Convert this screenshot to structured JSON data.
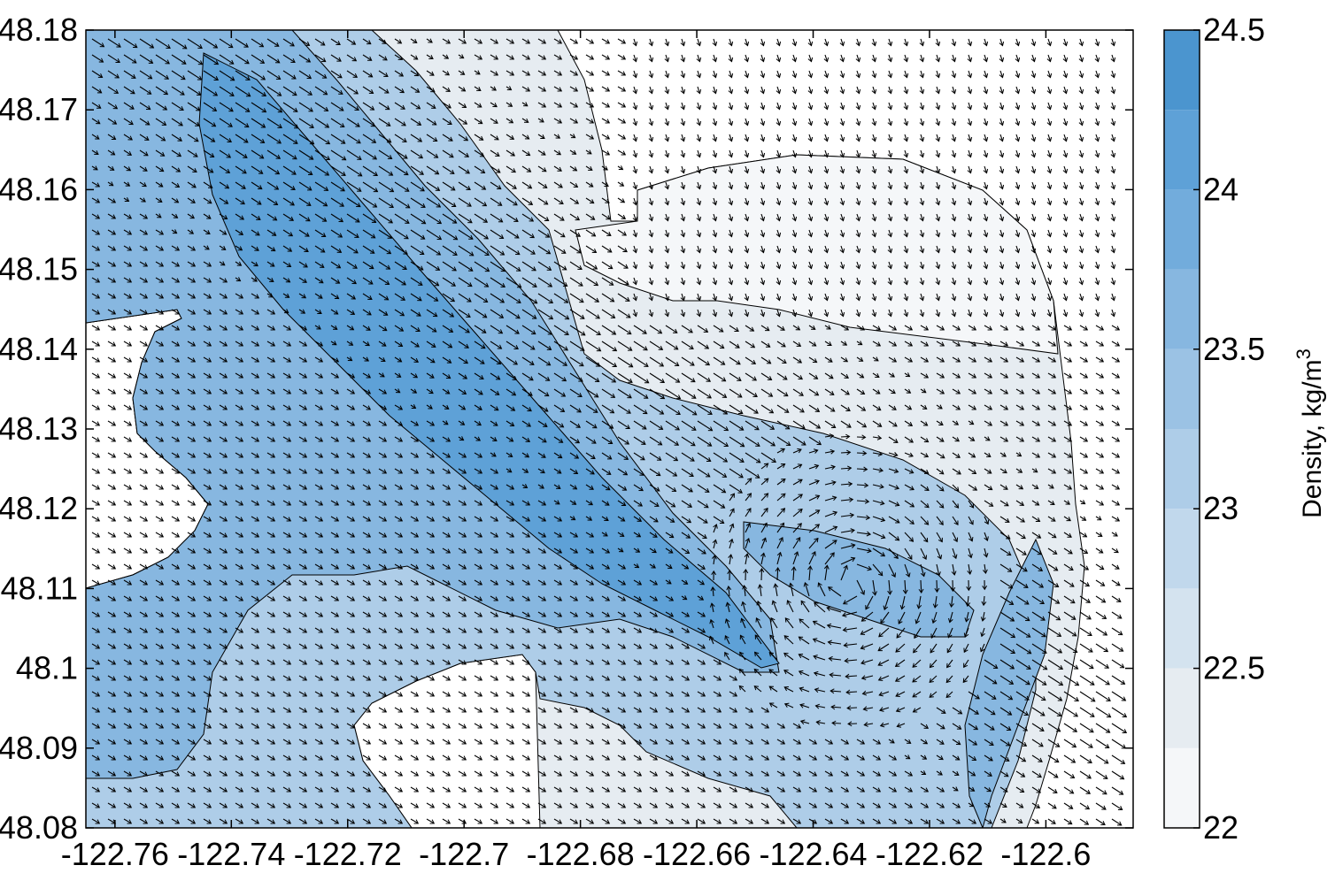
{
  "chart_data": {
    "type": "heatmap",
    "title": "",
    "xlabel": "",
    "ylabel": "",
    "x_range": [
      -122.765,
      -122.585
    ],
    "y_range": [
      48.08,
      48.18
    ],
    "x_ticks": [
      -122.76,
      -122.74,
      -122.72,
      -122.7,
      -122.68,
      -122.66,
      -122.64,
      -122.62,
      -122.6
    ],
    "x_tick_labels": [
      "-122.76",
      "-122.74",
      "-122.72",
      "-122.7",
      "-122.68",
      "-122.66",
      "-122.64",
      "-122.62",
      "-122.6"
    ],
    "y_ticks": [
      48.08,
      48.09,
      48.1,
      48.11,
      48.12,
      48.13,
      48.14,
      48.15,
      48.16,
      48.17,
      48.18
    ],
    "y_tick_labels": [
      "48.08",
      "48.09",
      "48.1",
      "48.11",
      "48.12",
      "48.13",
      "48.14",
      "48.15",
      "48.16",
      "48.17",
      "48.18"
    ],
    "colorbar": {
      "label": "Density, kg/m",
      "label_superscript": "3",
      "range": [
        22,
        24.5
      ],
      "levels": [
        22,
        22.25,
        22.5,
        22.75,
        23,
        23.25,
        23.5,
        23.75,
        24,
        24.25,
        24.5
      ],
      "ticks": [
        22,
        22.5,
        23,
        23.5,
        24,
        24.5
      ],
      "tick_labels": [
        "22",
        "22.5",
        "23",
        "23.5",
        "24",
        "24.5"
      ],
      "colors": [
        "#f5f7f9",
        "#e6ecf1",
        "#d4e3ef",
        "#c1d8ec",
        "#aecde8",
        "#9bc2e4",
        "#87b7e0",
        "#72acdc",
        "#5ea1d7",
        "#4b95cf"
      ]
    },
    "overlay": "velocity vector arrows (quiver) with contour lines",
    "grid": false,
    "legend": "none"
  }
}
